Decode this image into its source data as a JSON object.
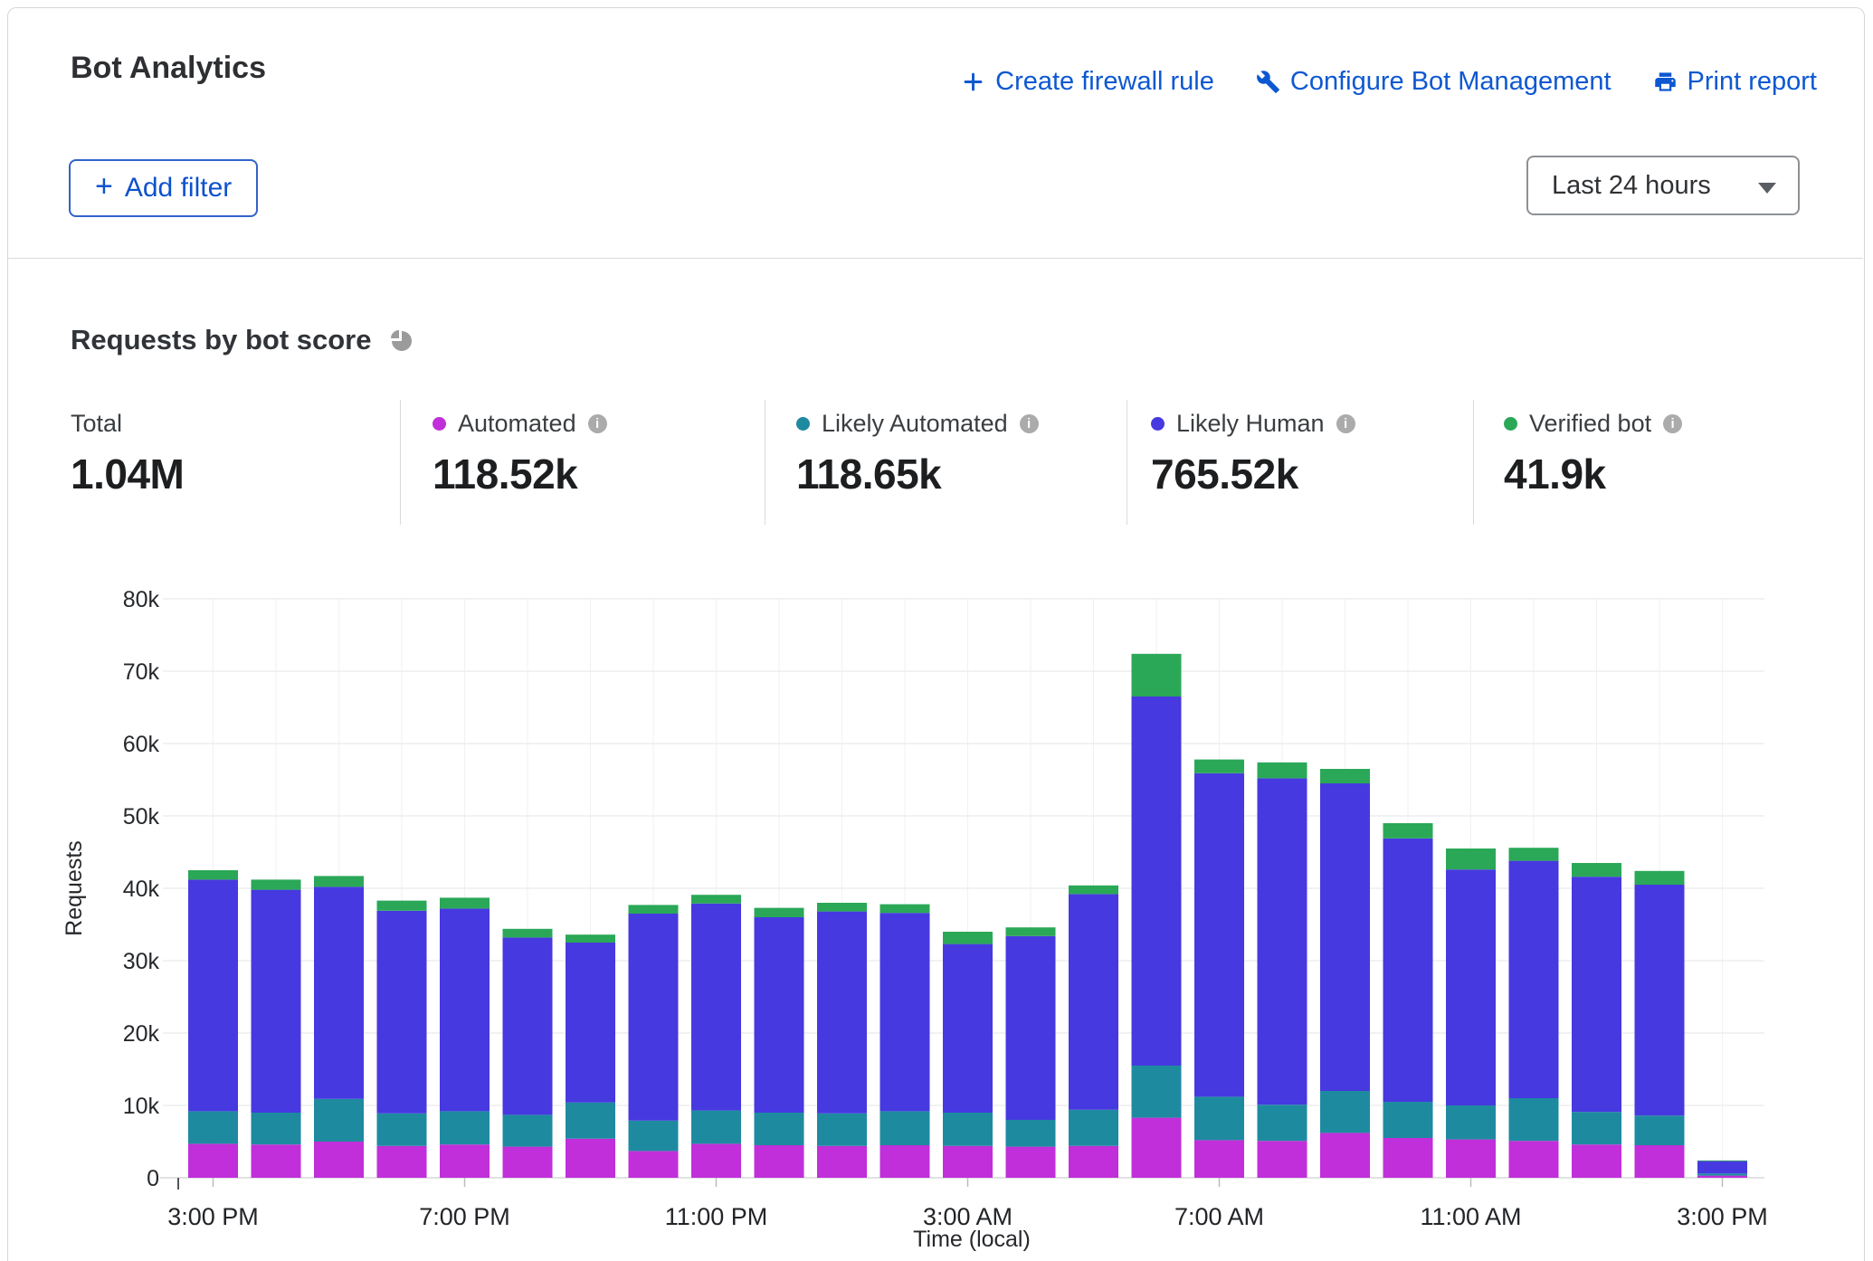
{
  "header": {
    "title": "Bot Analytics",
    "actions": [
      {
        "label": "Create firewall rule",
        "icon": "plus-icon"
      },
      {
        "label": "Configure Bot Management",
        "icon": "wrench-icon"
      },
      {
        "label": "Print report",
        "icon": "printer-icon"
      }
    ],
    "add_filter_label": "Add filter",
    "time_range": {
      "value": "Last 24 hours"
    }
  },
  "icons": {
    "plus_glyph": "+",
    "info_glyph": "i"
  },
  "section": {
    "title": "Requests by bot score",
    "icon": "pie-chart-icon"
  },
  "stats": {
    "total": {
      "label": "Total",
      "value": "1.04M"
    },
    "legend": [
      {
        "label": "Automated",
        "value": "118.52k",
        "color": "#c02fd9"
      },
      {
        "label": "Likely Automated",
        "value": "118.65k",
        "color": "#1e8aa0"
      },
      {
        "label": "Likely Human",
        "value": "765.52k",
        "color": "#4639e0"
      },
      {
        "label": "Verified bot",
        "value": "41.9k",
        "color": "#2aa857"
      }
    ]
  },
  "chart_data": {
    "type": "bar",
    "stacked": true,
    "title": "Requests by bot score",
    "xlabel": "Time (local)",
    "ylabel": "Requests",
    "ylim": [
      0,
      80000
    ],
    "grid": true,
    "legend_position": "top",
    "ytick_labels": [
      "0",
      "10k",
      "20k",
      "30k",
      "40k",
      "50k",
      "60k",
      "70k",
      "80k"
    ],
    "xtick_positions": [
      0,
      4,
      8,
      12,
      16,
      20,
      24
    ],
    "xtick_labels": [
      "3:00 PM",
      "7:00 PM",
      "11:00 PM",
      "3:00 AM",
      "7:00 AM",
      "11:00 AM",
      "3:00 PM"
    ],
    "categories": [
      "3:00 PM",
      "4:00 PM",
      "5:00 PM",
      "6:00 PM",
      "7:00 PM",
      "8:00 PM",
      "9:00 PM",
      "10:00 PM",
      "11:00 PM",
      "12:00 AM",
      "1:00 AM",
      "2:00 AM",
      "3:00 AM",
      "4:00 AM",
      "5:00 AM",
      "6:00 AM",
      "7:00 AM",
      "8:00 AM",
      "9:00 AM",
      "10:00 AM",
      "11:00 AM",
      "12:00 PM",
      "1:00 PM",
      "2:00 PM",
      "3:00 PM"
    ],
    "series": [
      {
        "name": "Automated",
        "color": "#c02fd9",
        "values": [
          4700,
          4600,
          5000,
          4400,
          4600,
          4300,
          5400,
          3700,
          4700,
          4500,
          4400,
          4500,
          4400,
          4300,
          4400,
          8300,
          5200,
          5100,
          6200,
          5500,
          5300,
          5100,
          4600,
          4500,
          300
        ]
      },
      {
        "name": "Likely Automated",
        "color": "#1e8aa0",
        "values": [
          4500,
          4400,
          5900,
          4500,
          4600,
          4400,
          5000,
          4200,
          4600,
          4500,
          4500,
          4700,
          4600,
          3700,
          5000,
          7200,
          6000,
          5000,
          5800,
          5000,
          4700,
          5900,
          4500,
          4100,
          300
        ]
      },
      {
        "name": "Likely Human",
        "color": "#4639e0",
        "values": [
          32000,
          30800,
          29300,
          28000,
          28000,
          24500,
          22100,
          28600,
          28600,
          27000,
          27900,
          27400,
          23300,
          25400,
          29800,
          51000,
          44700,
          45100,
          42500,
          36400,
          32600,
          32800,
          32500,
          31900,
          1700
        ]
      },
      {
        "name": "Verified bot",
        "color": "#2aa857",
        "values": [
          1300,
          1400,
          1500,
          1400,
          1500,
          1200,
          1100,
          1200,
          1200,
          1300,
          1200,
          1200,
          1700,
          1200,
          1200,
          5900,
          1900,
          2200,
          2000,
          2100,
          2900,
          1800,
          1900,
          1900,
          100
        ]
      }
    ]
  }
}
